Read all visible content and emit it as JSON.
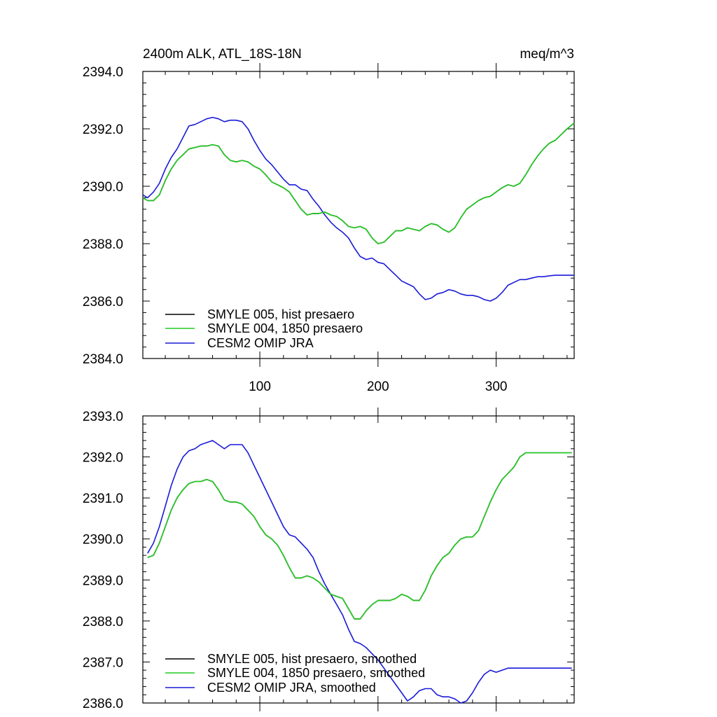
{
  "colors": {
    "black": "#000000",
    "green": "#22cc22",
    "blue": "#1a1ad8"
  },
  "chart_data": [
    {
      "type": "line",
      "title_left": "2400m ALK, ATL_18S-18N",
      "title_right": "meq/m^3",
      "xlim": [
        1,
        366
      ],
      "ylim": [
        2384.0,
        2394.0
      ],
      "yticks": [
        2384.0,
        2386.0,
        2388.0,
        2390.0,
        2392.0,
        2394.0
      ],
      "ytick_labels": [
        "2384.0",
        "2386.0",
        "2388.0",
        "2390.0",
        "2392.0",
        "2394.0"
      ],
      "xticks": [
        100,
        200,
        300
      ],
      "xtick_labels": [
        "100",
        "200",
        "300"
      ],
      "legend_position": "bottom-left",
      "series": [
        {
          "name": "SMYLE 005, hist presaero",
          "color": "#000000",
          "x": [
            1,
            5,
            10,
            15,
            20,
            25,
            30,
            35,
            40,
            45,
            50,
            55,
            60,
            65,
            70,
            75,
            80,
            85,
            90,
            95,
            100,
            105,
            110,
            115,
            120,
            125,
            130,
            135,
            140,
            145,
            150,
            155,
            160,
            165,
            170,
            175,
            180,
            185,
            190,
            195,
            200,
            205,
            210,
            215,
            220,
            225,
            230,
            235,
            240,
            245,
            250,
            255,
            260,
            265,
            270,
            275,
            280,
            285,
            290,
            295,
            300,
            305,
            310,
            315,
            320,
            325,
            330,
            335,
            340,
            345,
            350,
            355,
            360,
            366
          ],
          "y": [
            2389.6,
            2389.5,
            2389.5,
            2389.7,
            2390.2,
            2390.6,
            2390.9,
            2391.1,
            2391.3,
            2391.35,
            2391.4,
            2391.4,
            2391.45,
            2391.4,
            2391.1,
            2390.9,
            2390.85,
            2390.9,
            2390.85,
            2390.7,
            2390.6,
            2390.4,
            2390.15,
            2390.05,
            2389.95,
            2389.8,
            2389.5,
            2389.2,
            2389.0,
            2389.05,
            2389.05,
            2389.1,
            2389.0,
            2388.95,
            2388.8,
            2388.6,
            2388.55,
            2388.6,
            2388.5,
            2388.2,
            2388.0,
            2388.05,
            2388.25,
            2388.45,
            2388.45,
            2388.55,
            2388.5,
            2388.45,
            2388.6,
            2388.7,
            2388.65,
            2388.5,
            2388.4,
            2388.55,
            2388.9,
            2389.2,
            2389.35,
            2389.5,
            2389.6,
            2389.65,
            2389.8,
            2389.95,
            2390.05,
            2390.0,
            2390.1,
            2390.4,
            2390.75,
            2391.05,
            2391.3,
            2391.5,
            2391.6,
            2391.8,
            2392.0,
            2392.2
          ]
        },
        {
          "name": "SMYLE 004, 1850 presaero",
          "color": "#22cc22",
          "x": [
            1,
            5,
            10,
            15,
            20,
            25,
            30,
            35,
            40,
            45,
            50,
            55,
            60,
            65,
            70,
            75,
            80,
            85,
            90,
            95,
            100,
            105,
            110,
            115,
            120,
            125,
            130,
            135,
            140,
            145,
            150,
            155,
            160,
            165,
            170,
            175,
            180,
            185,
            190,
            195,
            200,
            205,
            210,
            215,
            220,
            225,
            230,
            235,
            240,
            245,
            250,
            255,
            260,
            265,
            270,
            275,
            280,
            285,
            290,
            295,
            300,
            305,
            310,
            315,
            320,
            325,
            330,
            335,
            340,
            345,
            350,
            355,
            360,
            366
          ],
          "y": [
            2389.6,
            2389.5,
            2389.5,
            2389.7,
            2390.2,
            2390.6,
            2390.9,
            2391.1,
            2391.3,
            2391.35,
            2391.4,
            2391.4,
            2391.45,
            2391.4,
            2391.1,
            2390.9,
            2390.85,
            2390.9,
            2390.85,
            2390.7,
            2390.6,
            2390.4,
            2390.15,
            2390.05,
            2389.95,
            2389.8,
            2389.5,
            2389.2,
            2389.0,
            2389.05,
            2389.05,
            2389.1,
            2389.0,
            2388.95,
            2388.8,
            2388.6,
            2388.55,
            2388.6,
            2388.5,
            2388.2,
            2388.0,
            2388.05,
            2388.25,
            2388.45,
            2388.45,
            2388.55,
            2388.5,
            2388.45,
            2388.6,
            2388.7,
            2388.65,
            2388.5,
            2388.4,
            2388.55,
            2388.9,
            2389.2,
            2389.35,
            2389.5,
            2389.6,
            2389.65,
            2389.8,
            2389.95,
            2390.05,
            2390.0,
            2390.1,
            2390.4,
            2390.75,
            2391.05,
            2391.3,
            2391.5,
            2391.6,
            2391.8,
            2392.0,
            2392.2
          ]
        },
        {
          "name": "CESM2 OMIP JRA",
          "color": "#1a1ad8",
          "x": [
            1,
            5,
            10,
            15,
            20,
            25,
            30,
            35,
            40,
            45,
            50,
            55,
            60,
            65,
            70,
            75,
            80,
            85,
            90,
            95,
            100,
            105,
            110,
            115,
            120,
            125,
            130,
            135,
            140,
            145,
            150,
            155,
            160,
            165,
            170,
            175,
            180,
            185,
            190,
            195,
            200,
            205,
            210,
            215,
            220,
            225,
            230,
            235,
            240,
            245,
            250,
            255,
            260,
            265,
            270,
            275,
            280,
            285,
            290,
            295,
            300,
            305,
            310,
            315,
            320,
            325,
            330,
            335,
            340,
            345,
            350,
            355,
            360,
            366
          ],
          "y": [
            2389.7,
            2389.6,
            2389.8,
            2390.1,
            2390.6,
            2391.0,
            2391.3,
            2391.7,
            2392.1,
            2392.15,
            2392.25,
            2392.35,
            2392.4,
            2392.35,
            2392.25,
            2392.3,
            2392.3,
            2392.25,
            2392.0,
            2391.6,
            2391.25,
            2390.95,
            2390.75,
            2390.5,
            2390.25,
            2390.05,
            2390.05,
            2389.9,
            2389.85,
            2389.55,
            2389.3,
            2389.0,
            2388.75,
            2388.55,
            2388.4,
            2388.2,
            2387.85,
            2387.55,
            2387.45,
            2387.5,
            2387.35,
            2387.3,
            2387.1,
            2386.9,
            2386.7,
            2386.6,
            2386.5,
            2386.25,
            2386.05,
            2386.1,
            2386.25,
            2386.3,
            2386.4,
            2386.35,
            2386.25,
            2386.2,
            2386.2,
            2386.15,
            2386.05,
            2386.0,
            2386.1,
            2386.3,
            2386.55,
            2386.65,
            2386.75,
            2386.75,
            2386.8,
            2386.85,
            2386.85,
            2386.88,
            2386.9,
            2386.9,
            2386.9,
            2386.9
          ]
        }
      ]
    },
    {
      "type": "line",
      "xlim": [
        1,
        366
      ],
      "ylim": [
        2386.0,
        2393.0
      ],
      "yticks": [
        2386.0,
        2387.0,
        2388.0,
        2389.0,
        2390.0,
        2391.0,
        2392.0,
        2393.0
      ],
      "ytick_labels": [
        "2386.0",
        "2387.0",
        "2388.0",
        "2389.0",
        "2390.0",
        "2391.0",
        "2392.0",
        "2393.0"
      ],
      "xticks": [
        100,
        200,
        300
      ],
      "legend_position": "bottom-left",
      "series": [
        {
          "name": "SMYLE 005, hist presaero, smoothed",
          "color": "#000000",
          "x": [
            5,
            10,
            15,
            20,
            25,
            30,
            35,
            40,
            45,
            50,
            55,
            60,
            65,
            70,
            75,
            80,
            85,
            90,
            95,
            100,
            105,
            110,
            115,
            120,
            125,
            130,
            135,
            140,
            145,
            150,
            155,
            160,
            165,
            170,
            175,
            180,
            185,
            190,
            195,
            200,
            205,
            210,
            215,
            220,
            225,
            230,
            235,
            240,
            245,
            250,
            255,
            260,
            265,
            270,
            275,
            280,
            285,
            290,
            295,
            300,
            305,
            310,
            315,
            320,
            325,
            330,
            335,
            340,
            345,
            350,
            355,
            360,
            364
          ],
          "y": [
            2389.55,
            2389.6,
            2389.9,
            2390.3,
            2390.7,
            2391.0,
            2391.2,
            2391.35,
            2391.4,
            2391.4,
            2391.45,
            2391.4,
            2391.2,
            2390.95,
            2390.9,
            2390.9,
            2390.85,
            2390.7,
            2390.55,
            2390.3,
            2390.1,
            2390.0,
            2389.85,
            2389.6,
            2389.3,
            2389.05,
            2389.05,
            2389.1,
            2389.05,
            2388.95,
            2388.8,
            2388.65,
            2388.6,
            2388.55,
            2388.3,
            2388.05,
            2388.05,
            2388.25,
            2388.4,
            2388.5,
            2388.5,
            2388.5,
            2388.55,
            2388.65,
            2388.6,
            2388.5,
            2388.5,
            2388.75,
            2389.1,
            2389.35,
            2389.55,
            2389.65,
            2389.85,
            2390.0,
            2390.05,
            2390.05,
            2390.2,
            2390.55,
            2390.9,
            2391.2,
            2391.45,
            2391.6,
            2391.75,
            2392.0,
            2392.1,
            2392.1,
            2392.1,
            2392.1,
            2392.1,
            2392.1,
            2392.1,
            2392.1,
            2392.1
          ]
        },
        {
          "name": "SMYLE 004, 1850 presaero, smoothed",
          "color": "#22cc22",
          "x": [
            5,
            10,
            15,
            20,
            25,
            30,
            35,
            40,
            45,
            50,
            55,
            60,
            65,
            70,
            75,
            80,
            85,
            90,
            95,
            100,
            105,
            110,
            115,
            120,
            125,
            130,
            135,
            140,
            145,
            150,
            155,
            160,
            165,
            170,
            175,
            180,
            185,
            190,
            195,
            200,
            205,
            210,
            215,
            220,
            225,
            230,
            235,
            240,
            245,
            250,
            255,
            260,
            265,
            270,
            275,
            280,
            285,
            290,
            295,
            300,
            305,
            310,
            315,
            320,
            325,
            330,
            335,
            340,
            345,
            350,
            355,
            360,
            364
          ],
          "y": [
            2389.55,
            2389.6,
            2389.9,
            2390.3,
            2390.7,
            2391.0,
            2391.2,
            2391.35,
            2391.4,
            2391.4,
            2391.45,
            2391.4,
            2391.2,
            2390.95,
            2390.9,
            2390.9,
            2390.85,
            2390.7,
            2390.55,
            2390.3,
            2390.1,
            2390.0,
            2389.85,
            2389.6,
            2389.3,
            2389.05,
            2389.05,
            2389.1,
            2389.05,
            2388.95,
            2388.8,
            2388.65,
            2388.6,
            2388.55,
            2388.3,
            2388.05,
            2388.05,
            2388.25,
            2388.4,
            2388.5,
            2388.5,
            2388.5,
            2388.55,
            2388.65,
            2388.6,
            2388.5,
            2388.5,
            2388.75,
            2389.1,
            2389.35,
            2389.55,
            2389.65,
            2389.85,
            2390.0,
            2390.05,
            2390.05,
            2390.2,
            2390.55,
            2390.9,
            2391.2,
            2391.45,
            2391.6,
            2391.75,
            2392.0,
            2392.1,
            2392.1,
            2392.1,
            2392.1,
            2392.1,
            2392.1,
            2392.1,
            2392.1,
            2392.1
          ]
        },
        {
          "name": "CESM2 OMIP JRA, smoothed",
          "color": "#1a1ad8",
          "x": [
            5,
            10,
            15,
            20,
            25,
            30,
            35,
            40,
            45,
            50,
            55,
            60,
            65,
            70,
            75,
            80,
            85,
            90,
            95,
            100,
            105,
            110,
            115,
            120,
            125,
            130,
            135,
            140,
            145,
            150,
            155,
            160,
            165,
            170,
            175,
            180,
            185,
            190,
            195,
            200,
            205,
            210,
            215,
            220,
            225,
            230,
            235,
            240,
            245,
            250,
            255,
            260,
            265,
            270,
            275,
            280,
            285,
            290,
            295,
            300,
            305,
            310,
            315,
            320,
            325,
            330,
            335,
            340,
            345,
            350,
            355,
            360,
            364
          ],
          "y": [
            2389.65,
            2389.9,
            2390.3,
            2390.8,
            2391.3,
            2391.7,
            2392.0,
            2392.15,
            2392.2,
            2392.3,
            2392.35,
            2392.4,
            2392.3,
            2392.2,
            2392.3,
            2392.3,
            2392.3,
            2392.1,
            2391.8,
            2391.5,
            2391.2,
            2390.9,
            2390.6,
            2390.3,
            2390.1,
            2390.05,
            2389.9,
            2389.75,
            2389.55,
            2389.2,
            2388.9,
            2388.65,
            2388.4,
            2388.15,
            2387.8,
            2387.5,
            2387.45,
            2387.35,
            2387.2,
            2387.05,
            2386.85,
            2386.65,
            2386.45,
            2386.25,
            2386.05,
            2386.15,
            2386.3,
            2386.35,
            2386.35,
            2386.2,
            2386.15,
            2386.15,
            2386.1,
            2386.0,
            2386.05,
            2386.25,
            2386.5,
            2386.7,
            2386.8,
            2386.75,
            2386.8,
            2386.85,
            2386.85,
            2386.85,
            2386.85,
            2386.85,
            2386.85,
            2386.85,
            2386.85,
            2386.85,
            2386.85,
            2386.85,
            2386.85
          ]
        }
      ]
    }
  ]
}
